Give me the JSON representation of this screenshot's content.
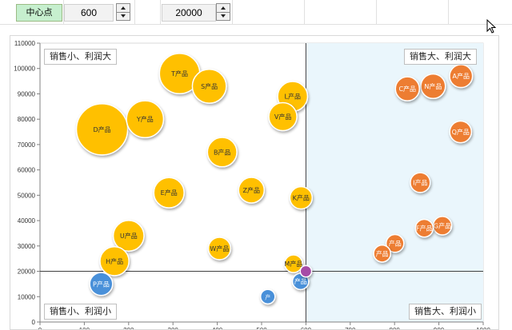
{
  "controls": {
    "center_label": "中心点",
    "center_x": "600",
    "center_y": "20000"
  },
  "chart_data": {
    "type": "scatter",
    "variant": "bubble",
    "xlim": [
      0,
      1000
    ],
    "ylim": [
      0,
      110000
    ],
    "x_ticks": [
      "0",
      "100",
      "200",
      "300",
      "400",
      "500",
      "600",
      "700",
      "800",
      "900",
      "1000"
    ],
    "y_ticks": [
      "0",
      "10000",
      "20000",
      "30000",
      "40000",
      "50000",
      "60000",
      "70000",
      "80000",
      "90000",
      "100000",
      "110000"
    ],
    "center": {
      "x": 600,
      "y": 20000
    },
    "quadrant_labels": {
      "top_left": "销售小、利润大",
      "top_right": "销售大、利润大",
      "bottom_left": "销售小、利润小",
      "bottom_right": "销售大、利润小"
    },
    "colors": {
      "top_left": "#ffc000",
      "top_right": "#ed7d31",
      "bottom_left": "#4a90d9",
      "center_marker": "#a64ca6",
      "quadrant_fill": "#eaf6fc",
      "center_lines": "#404040"
    },
    "points": [
      {
        "label": "D产品",
        "x": 140,
        "y": 76000,
        "size": 100,
        "quadrant": "top_left"
      },
      {
        "label": "T产品",
        "x": 315,
        "y": 98000,
        "size": 62,
        "quadrant": "top_left"
      },
      {
        "label": "S产品",
        "x": 382,
        "y": 93000,
        "size": 44,
        "quadrant": "top_left"
      },
      {
        "label": "Y产品",
        "x": 237,
        "y": 80000,
        "size": 52,
        "quadrant": "top_left"
      },
      {
        "label": "L产品",
        "x": 570,
        "y": 89000,
        "size": 34,
        "quadrant": "top_left"
      },
      {
        "label": "V产品",
        "x": 548,
        "y": 81000,
        "size": 30,
        "quadrant": "top_left"
      },
      {
        "label": "B产品",
        "x": 411,
        "y": 67000,
        "size": 33,
        "quadrant": "top_left"
      },
      {
        "label": "E产品",
        "x": 291,
        "y": 51000,
        "size": 35,
        "quadrant": "top_left"
      },
      {
        "label": "Z产品",
        "x": 477,
        "y": 52000,
        "size": 25,
        "quadrant": "top_left"
      },
      {
        "label": "K产品",
        "x": 589,
        "y": 49000,
        "size": 19,
        "quadrant": "top_left"
      },
      {
        "label": "U产品",
        "x": 200,
        "y": 34000,
        "size": 36,
        "quadrant": "top_left"
      },
      {
        "label": "H产品",
        "x": 168,
        "y": 24000,
        "size": 32,
        "quadrant": "top_left"
      },
      {
        "label": "W产品",
        "x": 405,
        "y": 29000,
        "size": 19,
        "quadrant": "top_left"
      },
      {
        "label": "M产品",
        "x": 572,
        "y": 23000,
        "size": 12,
        "quadrant": "top_left"
      },
      {
        "label": "A产品",
        "x": 950,
        "y": 97000,
        "size": 20,
        "quadrant": "top_right"
      },
      {
        "label": "N产品",
        "x": 887,
        "y": 93000,
        "size": 23,
        "quadrant": "top_right"
      },
      {
        "label": "C产品",
        "x": 829,
        "y": 92000,
        "size": 22,
        "quadrant": "top_right"
      },
      {
        "label": "Q产品",
        "x": 949,
        "y": 75000,
        "size": 18,
        "quadrant": "top_right"
      },
      {
        "label": "I产品",
        "x": 858,
        "y": 55000,
        "size": 15,
        "quadrant": "top_right"
      },
      {
        "label": "G产品",
        "x": 908,
        "y": 38000,
        "size": 13,
        "quadrant": "top_right"
      },
      {
        "label": "F产品",
        "x": 867,
        "y": 37000,
        "size": 12,
        "quadrant": "top_right"
      },
      {
        "label": "产品",
        "x": 801,
        "y": 31000,
        "size": 12,
        "quadrant": "top_right"
      },
      {
        "label": "产品",
        "x": 772,
        "y": 27000,
        "size": 11,
        "quadrant": "top_right"
      },
      {
        "label": "P产品",
        "x": 138,
        "y": 15000,
        "size": 20,
        "quadrant": "bottom_left"
      },
      {
        "label": "产品",
        "x": 588,
        "y": 16000,
        "size": 10,
        "quadrant": "bottom_left"
      },
      {
        "label": "产",
        "x": 514,
        "y": 10000,
        "size": 8,
        "quadrant": "bottom_left"
      },
      {
        "label": "",
        "x": 600,
        "y": 20000,
        "size": 5,
        "quadrant": "center_marker"
      }
    ]
  }
}
